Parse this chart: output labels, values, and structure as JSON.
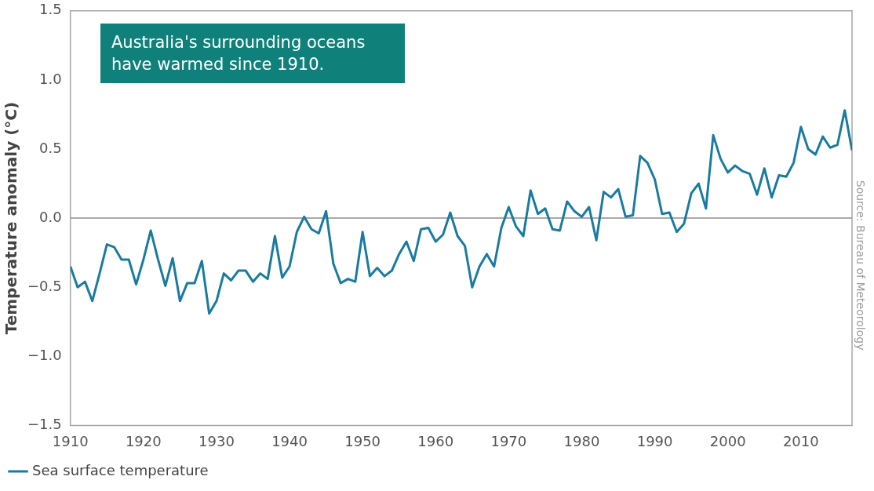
{
  "chart_data": {
    "type": "line",
    "ylabel": "Temperature anomaly (°C)",
    "annotations": [
      "Australia's surrounding oceans have warmed since 1910.",
      "Source: Bureau of Meteorology"
    ],
    "x": [
      1910,
      1911,
      1912,
      1913,
      1914,
      1915,
      1916,
      1917,
      1918,
      1919,
      1920,
      1921,
      1922,
      1923,
      1924,
      1925,
      1926,
      1927,
      1928,
      1929,
      1930,
      1931,
      1932,
      1933,
      1934,
      1935,
      1936,
      1937,
      1938,
      1939,
      1940,
      1941,
      1942,
      1943,
      1944,
      1945,
      1946,
      1947,
      1948,
      1949,
      1950,
      1951,
      1952,
      1953,
      1954,
      1955,
      1956,
      1957,
      1958,
      1959,
      1960,
      1961,
      1962,
      1963,
      1964,
      1965,
      1966,
      1967,
      1968,
      1969,
      1970,
      1971,
      1972,
      1973,
      1974,
      1975,
      1976,
      1977,
      1978,
      1979,
      1980,
      1981,
      1982,
      1983,
      1984,
      1985,
      1986,
      1987,
      1988,
      1989,
      1990,
      1991,
      1992,
      1993,
      1994,
      1995,
      1996,
      1997,
      1998,
      1999,
      2000,
      2001,
      2002,
      2003,
      2004,
      2005,
      2006,
      2007,
      2008,
      2009,
      2010,
      2011,
      2012,
      2013,
      2014,
      2015,
      2016,
      2017
    ],
    "series": [
      {
        "name": "Sea surface temperature",
        "color": "#1a7ba0",
        "values": [
          -0.35,
          -0.5,
          -0.46,
          -0.6,
          -0.4,
          -0.19,
          -0.21,
          -0.3,
          -0.3,
          -0.48,
          -0.3,
          -0.09,
          -0.3,
          -0.49,
          -0.29,
          -0.6,
          -0.47,
          -0.47,
          -0.31,
          -0.69,
          -0.6,
          -0.4,
          -0.45,
          -0.38,
          -0.38,
          -0.46,
          -0.4,
          -0.44,
          -0.13,
          -0.43,
          -0.35,
          -0.1,
          0.01,
          -0.08,
          -0.11,
          0.05,
          -0.33,
          -0.47,
          -0.44,
          -0.46,
          -0.1,
          -0.42,
          -0.36,
          -0.42,
          -0.38,
          -0.26,
          -0.17,
          -0.31,
          -0.08,
          -0.07,
          -0.17,
          -0.12,
          0.04,
          -0.13,
          -0.2,
          -0.5,
          -0.35,
          -0.26,
          -0.35,
          -0.07,
          0.08,
          -0.06,
          -0.13,
          0.2,
          0.03,
          0.07,
          -0.08,
          -0.09,
          0.12,
          0.05,
          0.01,
          0.08,
          -0.16,
          0.19,
          0.15,
          0.21,
          0.01,
          0.02,
          0.45,
          0.4,
          0.28,
          0.03,
          0.04,
          -0.1,
          -0.04,
          0.18,
          0.25,
          0.07,
          0.6,
          0.43,
          0.33,
          0.38,
          0.34,
          0.32,
          0.17,
          0.36,
          0.15,
          0.31,
          0.3,
          0.4,
          0.66,
          0.5,
          0.46,
          0.59,
          0.51,
          0.53,
          0.78,
          0.49
        ]
      }
    ],
    "xlim": [
      1910,
      2017
    ],
    "xticks": [
      {
        "value": 1910,
        "label": "1910"
      },
      {
        "value": 1920,
        "label": "1920"
      },
      {
        "value": 1930,
        "label": "1930"
      },
      {
        "value": 1940,
        "label": "1940"
      },
      {
        "value": 1950,
        "label": "1950"
      },
      {
        "value": 1960,
        "label": "1960"
      },
      {
        "value": 1970,
        "label": "1970"
      },
      {
        "value": 1980,
        "label": "1980"
      },
      {
        "value": 1990,
        "label": "1990"
      },
      {
        "value": 2000,
        "label": "2000"
      },
      {
        "value": 2010,
        "label": "2010"
      }
    ],
    "ylim": [
      -1.5,
      1.5
    ],
    "yticks": [
      {
        "value": -1.5,
        "label": "−1.5"
      },
      {
        "value": -1,
        "label": "−1.0"
      },
      {
        "value": -0.5,
        "label": "−0.5"
      },
      {
        "value": 0,
        "label": "0.0"
      },
      0.5,
      {
        "value": 1,
        "label": "1.0"
      },
      1.5
    ],
    "ref_lines": [
      {
        "axis": "y",
        "value": 0,
        "color": "#8c8c8c"
      }
    ],
    "legend": "bottom left",
    "marker": "none",
    "line_style": "solid",
    "grid": false
  }
}
